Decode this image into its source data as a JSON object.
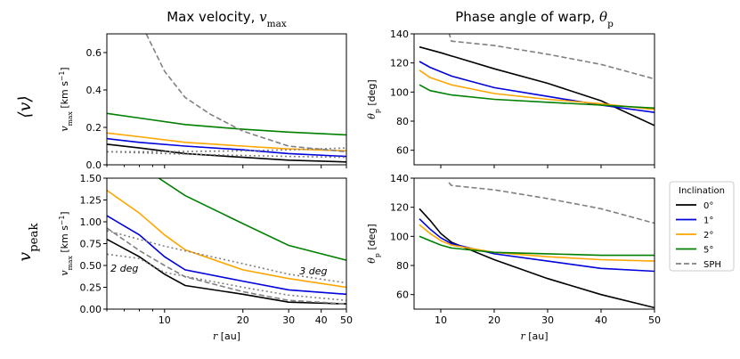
{
  "chart_data": {
    "type": "line",
    "panels": [
      {
        "id": "tl",
        "title": "Max velocity, v_max",
        "xscale": "log",
        "xlim": [
          6,
          50
        ],
        "ylim": [
          0,
          0.7
        ],
        "xticks": [],
        "yticks": [
          0.0,
          0.2,
          0.4,
          0.6
        ],
        "ytick_labels": [
          "0.0",
          "0.2",
          "0.4",
          "0.6"
        ],
        "ylabel": "v_max [km s⁻¹]",
        "series": [
          {
            "name": "0°",
            "color": "#000000",
            "dash": "",
            "x": [
              6,
              8,
              12,
              20,
              30,
              50
            ],
            "y": [
              0.11,
              0.09,
              0.06,
              0.04,
              0.025,
              0.015
            ]
          },
          {
            "name": "1°",
            "color": "#0000dd",
            "dash": "",
            "x": [
              6,
              8,
              12,
              20,
              30,
              50
            ],
            "y": [
              0.14,
              0.12,
              0.1,
              0.08,
              0.06,
              0.045
            ]
          },
          {
            "name": "2°",
            "color": "#ffa500",
            "dash": "",
            "x": [
              6,
              8,
              12,
              20,
              30,
              50
            ],
            "y": [
              0.17,
              0.15,
              0.12,
              0.1,
              0.085,
              0.075
            ]
          },
          {
            "name": "5°",
            "color": "#008000",
            "dash": "",
            "x": [
              6,
              8,
              12,
              20,
              30,
              50
            ],
            "y": [
              0.275,
              0.25,
              0.215,
              0.19,
              0.175,
              0.16
            ]
          },
          {
            "name": "SPH",
            "color": "#808080",
            "dash": "6,3",
            "x": [
              8.5,
              10,
              12,
              15,
              20,
              30,
              50
            ],
            "y": [
              0.7,
              0.5,
              0.36,
              0.27,
              0.18,
              0.1,
              0.07
            ]
          },
          {
            "name": "SPH 3 deg",
            "color": "#808080",
            "dash": "2,3",
            "x": [
              6,
              10,
              20,
              30,
              50
            ],
            "y": [
              0.07,
              0.07,
              0.075,
              0.08,
              0.09
            ]
          },
          {
            "name": "SPH 2 deg",
            "color": "#808080",
            "dash": "2,3",
            "x": [
              6,
              10,
              20,
              30,
              50
            ],
            "y": [
              0.07,
              0.06,
              0.05,
              0.045,
              0.04
            ]
          }
        ]
      },
      {
        "id": "tr",
        "title": "Phase angle of warp, θ_p",
        "xscale": "linear",
        "xlim": [
          5,
          50
        ],
        "ylim": [
          50,
          140
        ],
        "xticks": [],
        "yticks": [
          60,
          80,
          100,
          120,
          140
        ],
        "ytick_labels": [
          "60",
          "80",
          "100",
          "120",
          "140"
        ],
        "ylabel": "θ_p [deg]",
        "series": [
          {
            "name": "0°",
            "color": "#000000",
            "dash": "",
            "x": [
              6,
              10,
              20,
              30,
              40,
              50
            ],
            "y": [
              131,
              127,
              116,
              106,
              94,
              77
            ]
          },
          {
            "name": "1°",
            "color": "#0000dd",
            "dash": "",
            "x": [
              6,
              8,
              12,
              20,
              30,
              40,
              50
            ],
            "y": [
              121,
              117,
              111,
              103,
              97,
              91,
              86
            ]
          },
          {
            "name": "2°",
            "color": "#ffa500",
            "dash": "",
            "x": [
              6,
              8,
              12,
              20,
              30,
              40,
              50
            ],
            "y": [
              115,
              110,
              105,
              99,
              95,
              92,
              88
            ]
          },
          {
            "name": "5°",
            "color": "#008000",
            "dash": "",
            "x": [
              6,
              8,
              12,
              20,
              30,
              40,
              50
            ],
            "y": [
              105,
              101,
              98,
              95,
              93,
              91,
              89
            ]
          },
          {
            "name": "SPH",
            "color": "#808080",
            "dash": "6,3",
            "x": [
              11.5,
              12,
              20,
              30,
              40,
              50
            ],
            "y": [
              141,
              135,
              132,
              126,
              119,
              109
            ]
          }
        ]
      },
      {
        "id": "bl",
        "title": "",
        "xscale": "log",
        "xlim": [
          6,
          50
        ],
        "ylim": [
          0,
          1.5
        ],
        "xticks": [
          10,
          20,
          30,
          40,
          50
        ],
        "xtick_labels": [
          "10",
          "20",
          "30",
          "40",
          "50"
        ],
        "yticks": [
          0.0,
          0.25,
          0.5,
          0.75,
          1.0,
          1.25,
          1.5
        ],
        "ytick_labels": [
          "0.00",
          "0.25",
          "0.50",
          "0.75",
          "1.00",
          "1.25",
          "1.50"
        ],
        "ylabel": "v_max [km s⁻¹]",
        "xlabel": "r [au]",
        "series": [
          {
            "name": "0°",
            "color": "#000000",
            "dash": "",
            "x": [
              6,
              8,
              10,
              12,
              20,
              30,
              50
            ],
            "y": [
              0.8,
              0.6,
              0.4,
              0.27,
              0.17,
              0.08,
              0.06
            ]
          },
          {
            "name": "1°",
            "color": "#0000dd",
            "dash": "",
            "x": [
              6,
              8,
              10,
              12,
              20,
              30,
              50
            ],
            "y": [
              1.07,
              0.85,
              0.6,
              0.45,
              0.32,
              0.22,
              0.17
            ]
          },
          {
            "name": "2°",
            "color": "#ffa500",
            "dash": "",
            "x": [
              6,
              8,
              10,
              12,
              20,
              30,
              50
            ],
            "y": [
              1.36,
              1.1,
              0.85,
              0.68,
              0.45,
              0.35,
              0.25
            ]
          },
          {
            "name": "5°",
            "color": "#008000",
            "dash": "",
            "x": [
              9.5,
              12,
              20,
              30,
              50
            ],
            "y": [
              1.5,
              1.3,
              0.98,
              0.73,
              0.56
            ]
          },
          {
            "name": "SPH",
            "color": "#808080",
            "dash": "6,3",
            "x": [
              6,
              8,
              10,
              12,
              20,
              30,
              50
            ],
            "y": [
              0.93,
              0.67,
              0.5,
              0.37,
              0.2,
              0.1,
              0.06
            ]
          },
          {
            "name": "SPH 3 deg",
            "color": "#808080",
            "dash": "2,3",
            "x": [
              6,
              10,
              20,
              30,
              50
            ],
            "y": [
              0.9,
              0.72,
              0.52,
              0.4,
              0.3
            ]
          },
          {
            "name": "SPH 2 deg",
            "color": "#808080",
            "dash": "2,3",
            "x": [
              6,
              8,
              10,
              20,
              30,
              50
            ],
            "y": [
              0.63,
              0.58,
              0.42,
              0.25,
              0.16,
              0.1
            ]
          }
        ],
        "annotations": [
          {
            "text": "3 deg",
            "x": 33,
            "y": 0.4
          },
          {
            "text": "2 deg",
            "x": 6.2,
            "y": 0.43
          }
        ]
      },
      {
        "id": "br",
        "title": "",
        "xscale": "linear",
        "xlim": [
          5,
          50
        ],
        "ylim": [
          50,
          140
        ],
        "xticks": [
          10,
          20,
          30,
          40,
          50
        ],
        "xtick_labels": [
          "10",
          "20",
          "30",
          "40",
          "50"
        ],
        "yticks": [
          60,
          80,
          100,
          120,
          140
        ],
        "ytick_labels": [
          "60",
          "80",
          "100",
          "120",
          "140"
        ],
        "ylabel": "θ_p [deg]",
        "xlabel": "r [au]",
        "series": [
          {
            "name": "0°",
            "color": "#000000",
            "dash": "",
            "x": [
              6,
              8,
              10,
              12,
              20,
              30,
              40,
              50
            ],
            "y": [
              119,
              111,
              102,
              96,
              84,
              71,
              60,
              51
            ]
          },
          {
            "name": "1°",
            "color": "#0000dd",
            "dash": "",
            "x": [
              6,
              8,
              10,
              12,
              20,
              30,
              40,
              50
            ],
            "y": [
              112,
              105,
              99,
              95,
              88,
              83,
              78,
              76
            ]
          },
          {
            "name": "2°",
            "color": "#ffa500",
            "dash": "",
            "x": [
              6,
              8,
              10,
              12,
              20,
              30,
              40,
              50
            ],
            "y": [
              108,
              102,
              97,
              94,
              89,
              86,
              84,
              83
            ]
          },
          {
            "name": "5°",
            "color": "#008000",
            "dash": "",
            "x": [
              6,
              8,
              10,
              12,
              20,
              30,
              40,
              50
            ],
            "y": [
              100,
              97,
              94,
              92,
              89,
              88,
              87,
              87
            ]
          },
          {
            "name": "SPH",
            "color": "#808080",
            "dash": "6,3",
            "x": [
              11.5,
              12,
              20,
              30,
              40,
              50
            ],
            "y": [
              137,
              135,
              132,
              126,
              119,
              109
            ]
          }
        ]
      }
    ],
    "col_titles": [
      "Max velocity, v_max",
      "Phase angle of warp, θ_p"
    ],
    "row_labels": [
      "⟨v⟩",
      "v_peak"
    ],
    "legend": {
      "title": "Inclination",
      "placement": "right",
      "entries": [
        {
          "label": "0°",
          "color": "#000000",
          "dash": ""
        },
        {
          "label": "1°",
          "color": "#0000dd",
          "dash": ""
        },
        {
          "label": "2°",
          "color": "#ffa500",
          "dash": ""
        },
        {
          "label": "5°",
          "color": "#008000",
          "dash": ""
        },
        {
          "label": "SPH",
          "color": "#808080",
          "dash": "6,3"
        }
      ]
    }
  }
}
